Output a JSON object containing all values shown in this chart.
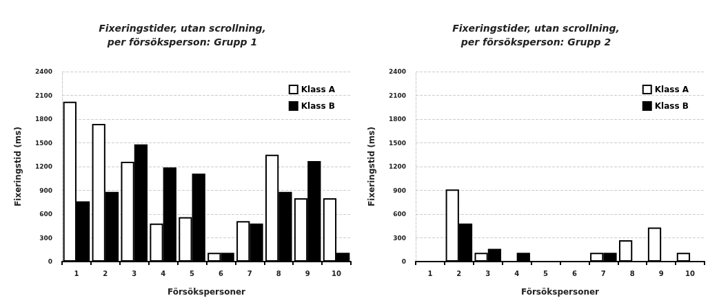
{
  "chart_data": [
    {
      "type": "bar",
      "title": "Fixeringstider, utan scrollning,\nper försöksperson: Grupp 1",
      "xlabel": "Försökspersoner",
      "ylabel": "Fixeringstid (ms)",
      "categories": [
        "1",
        "2",
        "3",
        "4",
        "5",
        "6",
        "7",
        "8",
        "9",
        "10"
      ],
      "series": [
        {
          "name": "Klass A",
          "color": "#ffffff",
          "values": [
            2020,
            1740,
            1260,
            480,
            560,
            110,
            510,
            1350,
            800,
            800
          ]
        },
        {
          "name": "Klass B",
          "color": "#000000",
          "values": [
            760,
            880,
            1480,
            1190,
            1110,
            110,
            480,
            880,
            1270,
            110
          ]
        }
      ],
      "ylim": [
        0,
        2400
      ],
      "yticks": [
        0,
        300,
        600,
        900,
        1200,
        1500,
        1800,
        2100,
        2400
      ],
      "grid": "y",
      "legend": "top right"
    },
    {
      "type": "bar",
      "title": "Fixeringstider, utan scrollning,\nper försöksperson: Grupp 2",
      "xlabel": "Försökspersoner",
      "ylabel": "Fixeringstid (ms)",
      "categories": [
        "1",
        "2",
        "3",
        "4",
        "5",
        "6",
        "7",
        "8",
        "9",
        "10"
      ],
      "series": [
        {
          "name": "Klass A",
          "color": "#ffffff",
          "values": [
            null,
            910,
            110,
            null,
            null,
            null,
            110,
            270,
            430,
            110
          ]
        },
        {
          "name": "Klass B",
          "color": "#000000",
          "values": [
            null,
            480,
            160,
            110,
            null,
            null,
            110,
            null,
            null,
            null
          ]
        }
      ],
      "ylim": [
        0,
        2400
      ],
      "yticks": [
        0,
        300,
        600,
        900,
        1200,
        1500,
        1800,
        2100,
        2400
      ],
      "grid": "y",
      "legend": "top right"
    }
  ]
}
